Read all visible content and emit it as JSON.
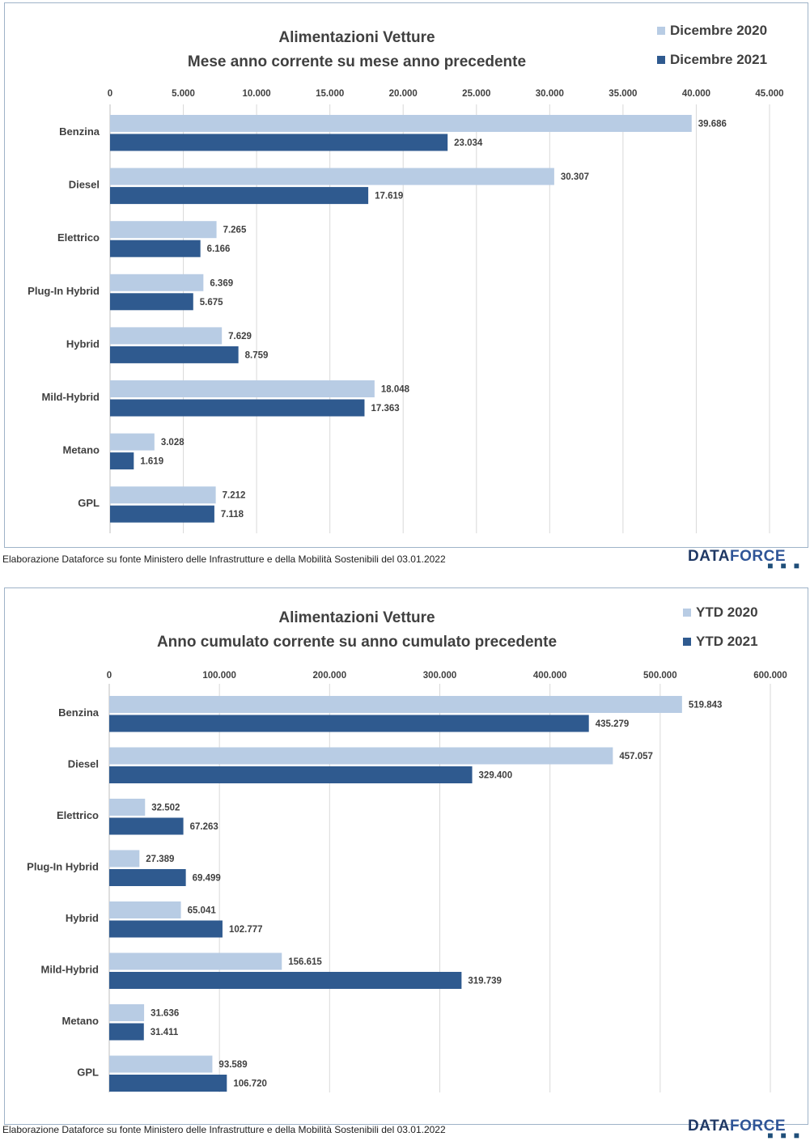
{
  "chart_data": [
    {
      "type": "bar",
      "orientation": "horizontal",
      "title_line1": "Alimentazioni Vetture",
      "title_line2": "Mese anno corrente su mese anno precedente",
      "categories": [
        "Benzina",
        "Diesel",
        "Elettrico",
        "Plug-In Hybrid",
        "Hybrid",
        "Mild-Hybrid",
        "Metano",
        "GPL"
      ],
      "series": [
        {
          "name": "Dicembre 2020",
          "color": "#b8cce4",
          "values": [
            39686,
            30307,
            7265,
            6369,
            7629,
            18048,
            3028,
            7212
          ],
          "labels": [
            "39.686",
            "30.307",
            "7.265",
            "6.369",
            "7.629",
            "18.048",
            "3.028",
            "7.212"
          ]
        },
        {
          "name": "Dicembre 2021",
          "color": "#2f5a8f",
          "values": [
            23034,
            17619,
            6166,
            5675,
            8759,
            17363,
            1619,
            7118
          ],
          "labels": [
            "23.034",
            "17.619",
            "6.166",
            "5.675",
            "8.759",
            "17.363",
            "1.619",
            "7.118"
          ]
        }
      ],
      "xlim": [
        0,
        45000
      ],
      "ticks": [
        0,
        5000,
        10000,
        15000,
        20000,
        25000,
        30000,
        35000,
        40000,
        45000
      ],
      "tick_labels": [
        "0",
        "5.000",
        "10.000",
        "15.000",
        "20.000",
        "25.000",
        "30.000",
        "35.000",
        "40.000",
        "45.000"
      ],
      "legend_position": "top-right",
      "grid": true
    },
    {
      "type": "bar",
      "orientation": "horizontal",
      "title_line1": "Alimentazioni Vetture",
      "title_line2": "Anno cumulato corrente su anno cumulato precedente",
      "categories": [
        "Benzina",
        "Diesel",
        "Elettrico",
        "Plug-In Hybrid",
        "Hybrid",
        "Mild-Hybrid",
        "Metano",
        "GPL"
      ],
      "series": [
        {
          "name": "YTD 2020",
          "color": "#b8cce4",
          "values": [
            519843,
            457057,
            32502,
            27389,
            65041,
            156615,
            31636,
            93589
          ],
          "labels": [
            "519.843",
            "457.057",
            "32.502",
            "27.389",
            "65.041",
            "156.615",
            "31.636",
            "93.589"
          ]
        },
        {
          "name": "YTD 2021",
          "color": "#2f5a8f",
          "values": [
            435279,
            329400,
            67263,
            69499,
            102777,
            319739,
            31411,
            106720
          ],
          "labels": [
            "435.279",
            "329.400",
            "67.263",
            "69.499",
            "102.777",
            "319.739",
            "31.411",
            "106.720"
          ]
        }
      ],
      "xlim": [
        0,
        600000
      ],
      "ticks": [
        0,
        100000,
        200000,
        300000,
        400000,
        500000,
        600000
      ],
      "tick_labels": [
        "0",
        "100.000",
        "200.000",
        "300.000",
        "400.000",
        "500.000",
        "600.000"
      ],
      "legend_position": "top-right",
      "grid": true
    }
  ],
  "footer": {
    "source": "Elaborazione Dataforce su fonte Ministero delle Infrastrutture e della Mobilità Sostenibili del 03.01.2022",
    "logo_part1": "DATA",
    "logo_part2": "FORCE",
    "logo_dots": "■■■"
  }
}
